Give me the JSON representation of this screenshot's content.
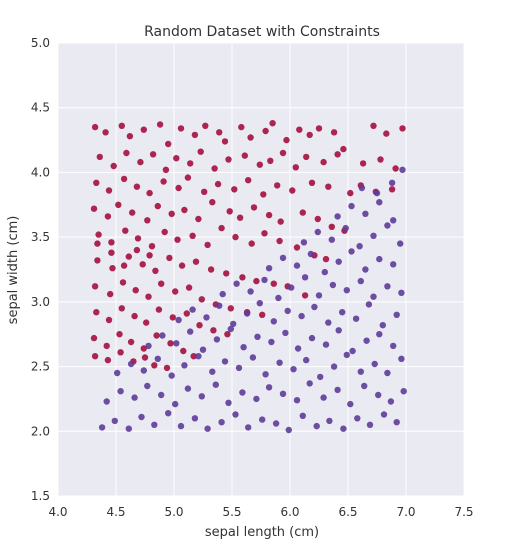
{
  "chart_data": {
    "type": "scatter",
    "title": "Random Dataset with Constraints",
    "xlabel": "sepal length (cm)",
    "ylabel": "sepal width (cm)",
    "xlim": [
      4.0,
      7.5
    ],
    "ylim": [
      1.5,
      5.0
    ],
    "xticks": [
      "4.0",
      "4.5",
      "5.0",
      "5.5",
      "6.0",
      "6.5",
      "7.0",
      "7.5"
    ],
    "yticks": [
      "1.5",
      "2.0",
      "2.5",
      "3.0",
      "3.5",
      "4.0",
      "4.5",
      "5.0"
    ],
    "grid": true,
    "legend": "none",
    "background": "#eaeaf2",
    "colors": {
      "upper_class": "#a50f3e",
      "lower_class": "#5e3c99"
    },
    "series": [
      {
        "color": "#a50f3e",
        "x": [
          4.32,
          4.41,
          4.55,
          4.62,
          4.74,
          4.88,
          4.95,
          5.06,
          5.18,
          5.27,
          5.39,
          5.44,
          5.58,
          5.66,
          5.79,
          5.85,
          5.97,
          6.08,
          6.17,
          6.25,
          6.38,
          6.46,
          6.72,
          6.83,
          6.97,
          4.36,
          4.48,
          4.59,
          4.71,
          4.82,
          4.93,
          5.02,
          5.14,
          5.23,
          5.35,
          5.47,
          5.61,
          5.74,
          5.83,
          5.94,
          6.05,
          6.14,
          6.29,
          6.41,
          6.63,
          6.78,
          6.91,
          4.33,
          4.44,
          4.57,
          4.68,
          4.79,
          4.91,
          5.04,
          5.12,
          5.26,
          5.38,
          5.52,
          5.64,
          5.77,
          5.89,
          6.02,
          6.19,
          6.33,
          6.52,
          6.61,
          6.74,
          6.88,
          4.31,
          4.43,
          4.52,
          4.64,
          4.77,
          4.86,
          4.98,
          5.09,
          5.21,
          5.33,
          5.48,
          5.57,
          5.69,
          5.82,
          5.92,
          6.11,
          6.24,
          6.36,
          6.47,
          4.35,
          4.46,
          4.58,
          4.69,
          4.81,
          4.92,
          5.03,
          5.16,
          5.29,
          5.41,
          5.53,
          5.67,
          5.78,
          5.91,
          6.06,
          6.21,
          6.31,
          4.34,
          4.47,
          4.61,
          4.73,
          4.84,
          4.96,
          5.07,
          5.19,
          5.32,
          5.45,
          5.59,
          5.71,
          5.86,
          5.98,
          6.13,
          4.32,
          4.45,
          4.56,
          4.67,
          4.78,
          4.89,
          5.01,
          5.13,
          5.24,
          5.36,
          5.49,
          5.63,
          5.76,
          4.33,
          4.44,
          4.55,
          4.66,
          4.76,
          4.87,
          4.99,
          5.11,
          5.22,
          5.34,
          5.46,
          4.31,
          4.42,
          4.53,
          4.63,
          4.74,
          4.85,
          4.97,
          5.08,
          5.17,
          4.32,
          4.43,
          4.54,
          4.65,
          4.75,
          4.83,
          4.94,
          4.34,
          4.46,
          4.57,
          4.68,
          4.79
        ],
        "y": [
          4.35,
          4.31,
          4.36,
          4.28,
          4.33,
          4.37,
          4.22,
          4.34,
          4.29,
          4.36,
          4.31,
          4.24,
          4.35,
          4.27,
          4.32,
          4.38,
          4.25,
          4.33,
          4.29,
          4.34,
          4.31,
          4.18,
          4.36,
          4.3,
          4.34,
          4.12,
          4.05,
          4.15,
          4.08,
          4.14,
          4.02,
          4.11,
          4.07,
          4.16,
          4.03,
          4.1,
          4.13,
          4.06,
          4.09,
          4.15,
          4.04,
          4.12,
          4.08,
          4.14,
          4.07,
          4.1,
          4.03,
          3.92,
          3.86,
          3.95,
          3.89,
          3.84,
          3.93,
          3.88,
          3.96,
          3.85,
          3.91,
          3.87,
          3.94,
          3.83,
          3.9,
          3.86,
          3.92,
          3.89,
          3.84,
          3.9,
          3.85,
          3.87,
          3.72,
          3.66,
          3.75,
          3.69,
          3.63,
          3.74,
          3.68,
          3.71,
          3.64,
          3.77,
          3.7,
          3.65,
          3.73,
          3.67,
          3.62,
          3.69,
          3.64,
          3.58,
          3.55,
          3.52,
          3.46,
          3.55,
          3.49,
          3.43,
          3.54,
          3.48,
          3.51,
          3.44,
          3.57,
          3.5,
          3.45,
          3.53,
          3.47,
          3.42,
          3.36,
          3.33,
          3.32,
          3.26,
          3.35,
          3.29,
          3.24,
          3.34,
          3.28,
          3.31,
          3.25,
          3.22,
          3.19,
          3.16,
          3.14,
          3.12,
          3.05,
          3.12,
          3.06,
          3.15,
          3.09,
          3.04,
          3.14,
          3.08,
          3.11,
          3.02,
          2.98,
          2.95,
          2.92,
          2.9,
          2.92,
          2.86,
          2.95,
          2.89,
          2.84,
          2.94,
          2.88,
          2.91,
          2.82,
          2.78,
          2.75,
          2.72,
          2.66,
          2.75,
          2.69,
          2.64,
          2.74,
          2.68,
          2.62,
          2.58,
          2.58,
          2.55,
          2.61,
          2.54,
          2.57,
          2.51,
          2.49,
          3.45,
          3.38,
          3.28,
          3.4,
          3.36
        ]
      },
      {
        "color": "#5e3c99",
        "x": [
          4.38,
          4.49,
          4.61,
          4.72,
          4.83,
          4.95,
          5.06,
          5.18,
          5.29,
          5.41,
          5.53,
          5.64,
          5.76,
          5.88,
          5.99,
          6.11,
          6.23,
          6.34,
          6.46,
          6.58,
          6.69,
          6.81,
          6.92,
          4.42,
          4.54,
          4.66,
          4.77,
          4.89,
          5.01,
          5.12,
          5.24,
          5.36,
          5.47,
          5.59,
          5.71,
          5.82,
          5.94,
          6.06,
          6.17,
          6.29,
          6.41,
          6.52,
          6.64,
          6.76,
          6.87,
          6.98,
          4.51,
          4.63,
          4.74,
          4.86,
          4.98,
          5.09,
          5.21,
          5.33,
          5.44,
          5.56,
          5.68,
          5.79,
          5.91,
          6.03,
          6.14,
          6.26,
          6.38,
          6.49,
          6.61,
          6.73,
          6.84,
          6.96,
          4.78,
          4.9,
          5.02,
          5.14,
          5.25,
          5.37,
          5.49,
          5.6,
          5.72,
          5.84,
          5.96,
          6.07,
          6.19,
          6.31,
          6.42,
          6.54,
          6.66,
          6.77,
          6.89,
          5.04,
          5.16,
          5.28,
          5.39,
          5.51,
          5.63,
          5.74,
          5.86,
          5.98,
          6.1,
          6.21,
          6.33,
          6.45,
          6.57,
          6.68,
          6.8,
          6.92,
          5.42,
          5.54,
          5.66,
          5.78,
          5.9,
          6.01,
          6.13,
          6.25,
          6.37,
          6.49,
          6.61,
          6.72,
          6.84,
          6.96,
          5.82,
          5.94,
          6.06,
          6.18,
          6.3,
          6.42,
          6.53,
          6.65,
          6.77,
          6.89,
          6.12,
          6.24,
          6.36,
          6.48,
          6.6,
          6.72,
          6.84,
          6.95,
          6.41,
          6.53,
          6.65,
          6.77,
          6.89,
          6.62,
          6.75,
          6.88,
          6.97
        ],
        "y": [
          2.03,
          2.08,
          2.02,
          2.11,
          2.05,
          2.14,
          2.04,
          2.1,
          2.02,
          2.07,
          2.13,
          2.03,
          2.09,
          2.06,
          2.01,
          2.12,
          2.04,
          2.08,
          2.02,
          2.1,
          2.05,
          2.13,
          2.07,
          2.23,
          2.31,
          2.26,
          2.35,
          2.28,
          2.21,
          2.33,
          2.27,
          2.36,
          2.22,
          2.3,
          2.25,
          2.34,
          2.29,
          2.24,
          2.37,
          2.26,
          2.32,
          2.21,
          2.35,
          2.28,
          2.23,
          2.31,
          2.45,
          2.52,
          2.47,
          2.56,
          2.43,
          2.51,
          2.58,
          2.46,
          2.54,
          2.49,
          2.57,
          2.44,
          2.53,
          2.48,
          2.55,
          2.42,
          2.5,
          2.59,
          2.46,
          2.52,
          2.45,
          2.56,
          2.66,
          2.74,
          2.68,
          2.77,
          2.63,
          2.71,
          2.79,
          2.65,
          2.73,
          2.69,
          2.76,
          2.64,
          2.72,
          2.67,
          2.78,
          2.62,
          2.7,
          2.75,
          2.66,
          2.86,
          2.94,
          2.88,
          2.97,
          2.83,
          2.91,
          2.99,
          2.85,
          2.93,
          2.89,
          2.96,
          2.84,
          2.92,
          2.87,
          2.98,
          2.82,
          2.9,
          3.06,
          3.14,
          3.08,
          3.17,
          3.03,
          3.11,
          3.19,
          3.05,
          3.13,
          3.09,
          3.16,
          3.04,
          3.12,
          3.07,
          3.26,
          3.34,
          3.28,
          3.37,
          3.23,
          3.31,
          3.39,
          3.25,
          3.33,
          3.29,
          3.46,
          3.54,
          3.48,
          3.57,
          3.43,
          3.51,
          3.59,
          3.45,
          3.66,
          3.74,
          3.68,
          3.77,
          3.63,
          3.88,
          3.84,
          3.92,
          4.02
        ]
      }
    ]
  }
}
